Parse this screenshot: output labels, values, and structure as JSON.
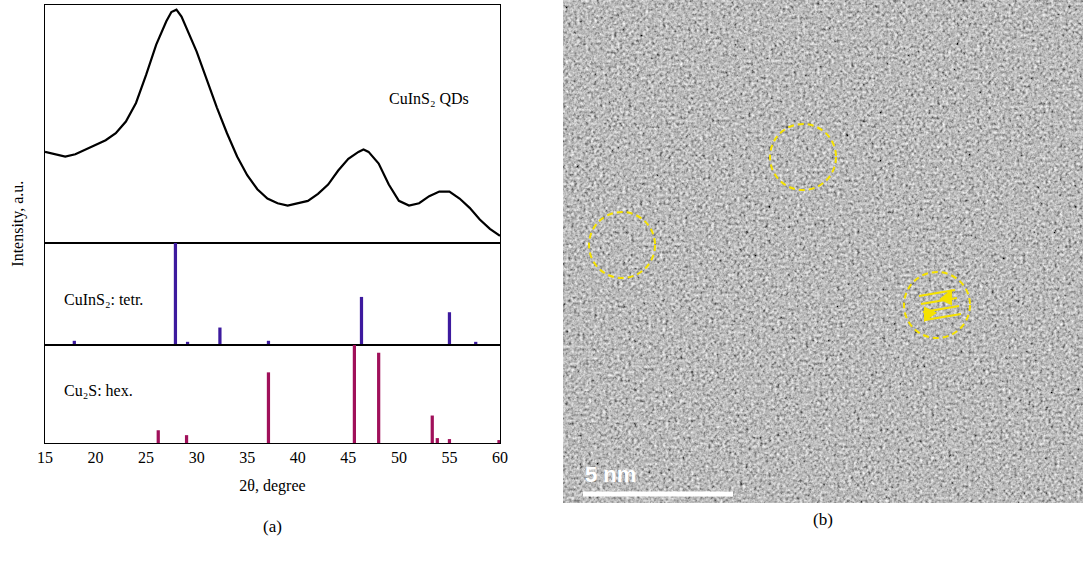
{
  "chart_data": [
    {
      "type": "line",
      "x": [
        15,
        16,
        17,
        18,
        19,
        20,
        21,
        22,
        23,
        24,
        25,
        26,
        27,
        27.5,
        28,
        28.5,
        29,
        30,
        31,
        32,
        33,
        34,
        35,
        36,
        37,
        38,
        39,
        40,
        41,
        42,
        43,
        44,
        45,
        46,
        46.5,
        47,
        48,
        49,
        50,
        51,
        52,
        53,
        54,
        55,
        56,
        57,
        58,
        59,
        60
      ],
      "series": [
        {
          "name": "CuInS₂ QDs",
          "color": "#000000",
          "values": [
            0.39,
            0.38,
            0.37,
            0.38,
            0.4,
            0.42,
            0.44,
            0.47,
            0.52,
            0.6,
            0.72,
            0.85,
            0.95,
            0.99,
            1.0,
            0.97,
            0.92,
            0.82,
            0.7,
            0.58,
            0.47,
            0.37,
            0.29,
            0.23,
            0.19,
            0.17,
            0.16,
            0.17,
            0.18,
            0.21,
            0.25,
            0.31,
            0.36,
            0.39,
            0.4,
            0.39,
            0.34,
            0.25,
            0.18,
            0.16,
            0.17,
            0.2,
            0.22,
            0.22,
            0.19,
            0.15,
            0.1,
            0.06,
            0.03
          ]
        }
      ],
      "xlim": [
        15,
        60
      ],
      "xticks": [
        15,
        20,
        25,
        30,
        35,
        40,
        45,
        50,
        55,
        60
      ],
      "ylim": [
        0,
        1.02
      ],
      "yticks": [],
      "tick_labels": false
    },
    {
      "type": "bar",
      "x": [
        17.9,
        27.9,
        29.1,
        32.3,
        37.1,
        46.3,
        55.0,
        57.6
      ],
      "series": [
        {
          "name": "CuInS₂: tetr.",
          "color": "#3d1a9e",
          "values": [
            0.04,
            1.0,
            0.03,
            0.17,
            0.04,
            0.47,
            0.32,
            0.03
          ]
        }
      ],
      "xlim": [
        15,
        60
      ],
      "xticks": [
        15,
        20,
        25,
        30,
        35,
        40,
        45,
        50,
        55,
        60
      ],
      "ylim": [
        0,
        1.0
      ],
      "yticks": [],
      "tick_labels": false
    },
    {
      "type": "bar",
      "x": [
        26.2,
        29.0,
        37.1,
        45.6,
        48.0,
        53.3,
        53.8,
        55.0,
        59.9
      ],
      "series": [
        {
          "name": "Cu₂S: hex.",
          "color": "#a0105a",
          "values": [
            0.13,
            0.08,
            0.72,
            1.0,
            0.92,
            0.28,
            0.05,
            0.04,
            0.03
          ]
        }
      ],
      "xlim": [
        15,
        60
      ],
      "xticks": [
        15,
        20,
        25,
        30,
        35,
        40,
        45,
        50,
        55,
        60
      ],
      "ylim": [
        0,
        1.0
      ],
      "yticks": [],
      "tick_labels": "x",
      "x_label": "2θ, degree"
    }
  ],
  "figure": {
    "y_label": "Intensity, a.u.",
    "panel_a": "(a)",
    "panel_b": "(b)",
    "scale_bar": "5 nm"
  }
}
